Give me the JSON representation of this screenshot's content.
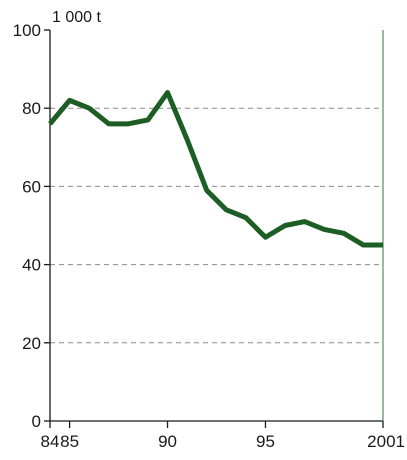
{
  "chart_data": {
    "type": "line",
    "title": "",
    "unit_label": "1 000 t",
    "xlabel": "",
    "ylabel": "",
    "x": [
      1984,
      1985,
      1986,
      1987,
      1988,
      1989,
      1990,
      1991,
      1992,
      1993,
      1994,
      1995,
      1996,
      1997,
      1998,
      1999,
      2000,
      2001
    ],
    "series": [
      {
        "name": "",
        "values": [
          76,
          82,
          80,
          76,
          76,
          77,
          84,
          72,
          59,
          54,
          52,
          47,
          50,
          51,
          49,
          48,
          45,
          45
        ]
      }
    ],
    "xlim": [
      1984,
      2001
    ],
    "ylim": [
      0,
      100
    ],
    "x_ticks": [
      1984,
      1985,
      1990,
      1995,
      2001
    ],
    "x_tick_labels": [
      "84",
      "85",
      "90",
      "95",
      "2001"
    ],
    "y_ticks": [
      0,
      20,
      40,
      60,
      80,
      100
    ],
    "y_tick_labels": [
      "0",
      "20",
      "40",
      "60",
      "80",
      "100"
    ],
    "grid": "horizontal dashed",
    "legend": "none",
    "colors": {
      "line": "#1c5e23",
      "axis": "#1a1a1a",
      "grid": "#8c8c8c",
      "right_border": "#2f7a3a"
    }
  }
}
